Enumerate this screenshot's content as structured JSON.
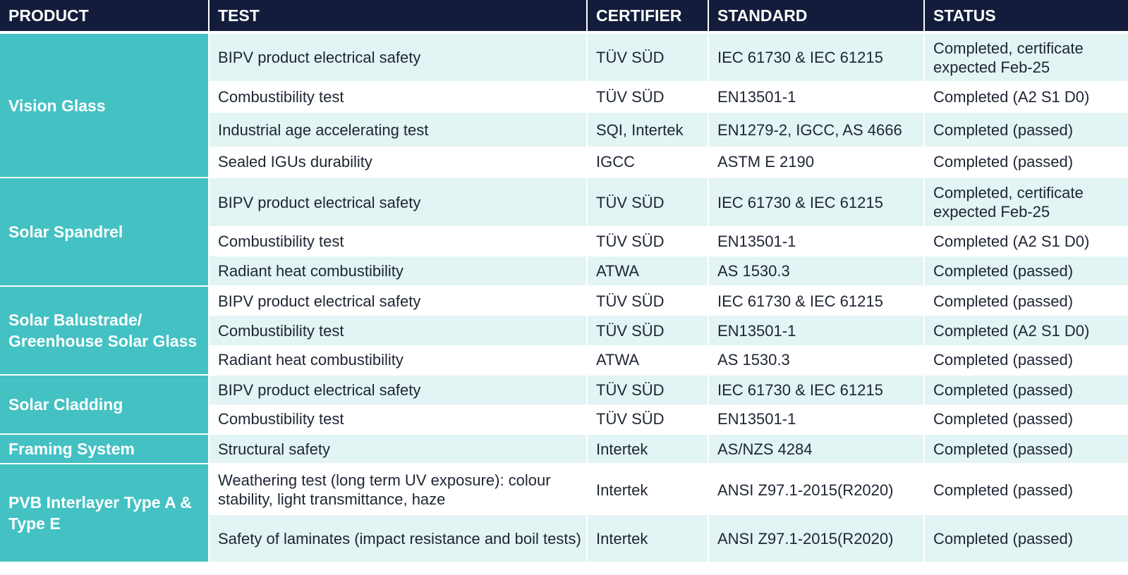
{
  "headers": [
    "PRODUCT",
    "TEST",
    "CERTIFIER",
    "STANDARD",
    "STATUS"
  ],
  "groups": [
    {
      "product": "Vision Glass",
      "rows": [
        {
          "test": "BIPV product electrical safety",
          "certifier": "TÜV SÜD",
          "standard": "IEC 61730 & IEC 61215",
          "status": "Completed, certificate expected Feb-25"
        },
        {
          "test": "Combustibility test",
          "certifier": "TÜV SÜD",
          "standard": "EN13501-1",
          "status": "Completed (A2 S1 D0)"
        },
        {
          "test": "Industrial age accelerating test",
          "certifier": "SQI, Intertek",
          "standard": "EN1279-2, IGCC, AS 4666",
          "status": "Completed (passed)"
        },
        {
          "test": "Sealed IGUs durability",
          "certifier": "IGCC",
          "standard": "ASTM E  2190",
          "status": "Completed (passed)"
        }
      ]
    },
    {
      "product": "Solar Spandrel",
      "rows": [
        {
          "test": "BIPV product electrical safety",
          "certifier": "TÜV SÜD",
          "standard": "IEC 61730 & IEC 61215",
          "status": "Completed, certificate expected Feb-25"
        },
        {
          "test": "Combustibility test",
          "certifier": "TÜV SÜD",
          "standard": "EN13501-1",
          "status": "Completed (A2 S1 D0)"
        },
        {
          "test": "Radiant heat combustibility",
          "certifier": "ATWA",
          "standard": "AS 1530.3",
          "status": "Completed (passed)"
        }
      ]
    },
    {
      "product": "Solar Balustrade/ Greenhouse Solar Glass",
      "rows": [
        {
          "test": "BIPV product electrical safety",
          "certifier": "TÜV SÜD",
          "standard": "IEC 61730 & IEC 61215",
          "status": "Completed (passed)"
        },
        {
          "test": "Combustibility test",
          "certifier": "TÜV SÜD",
          "standard": "EN13501-1",
          "status": "Completed (A2 S1 D0)"
        },
        {
          "test": "Radiant heat combustibility",
          "certifier": "ATWA",
          "standard": "AS 1530.3",
          "status": "Completed (passed)"
        }
      ]
    },
    {
      "product": "Solar Cladding",
      "rows": [
        {
          "test": "BIPV product electrical safety",
          "certifier": "TÜV SÜD",
          "standard": "IEC 61730 & IEC 61215",
          "status": "Completed (passed)"
        },
        {
          "test": "Combustibility test",
          "certifier": "TÜV SÜD",
          "standard": "EN13501-1",
          "status": "Completed (passed)"
        }
      ]
    },
    {
      "product": "Framing System",
      "rows": [
        {
          "test": "Structural safety",
          "certifier": "Intertek",
          "standard": "AS/NZS 4284",
          "status": "Completed (passed)"
        }
      ]
    },
    {
      "product": "PVB Interlayer Type A & Type E",
      "rows": [
        {
          "test": "Weathering test (long term UV exposure): colour stability, light transmittance, haze",
          "certifier": "Intertek",
          "standard": "ANSI Z97.1-2015(R2020)",
          "status": "Completed (passed)"
        },
        {
          "test": "Safety of laminates (impact resistance and boil tests)",
          "certifier": "Intertek",
          "standard": "ANSI Z97.1-2015(R2020)",
          "status": "Completed (passed)"
        }
      ]
    }
  ]
}
